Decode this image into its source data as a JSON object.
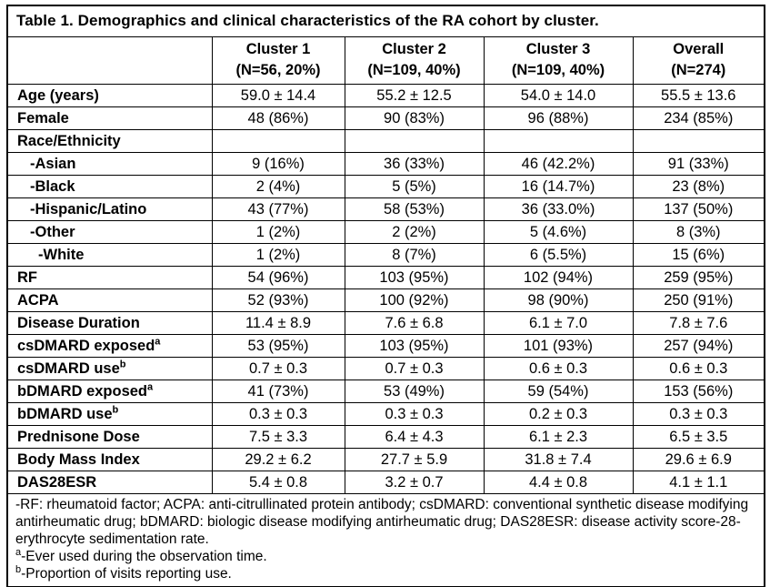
{
  "table": {
    "title": "Table 1. Demographics and clinical characteristics of the RA cohort by cluster.",
    "columns": [
      {
        "line1": "Cluster 1",
        "line2": "(N=56, 20%)"
      },
      {
        "line1": "Cluster 2",
        "line2": "(N=109, 40%)"
      },
      {
        "line1": "Cluster 3",
        "line2": "(N=109, 40%)"
      },
      {
        "line1": "Overall",
        "line2": "(N=274)"
      }
    ],
    "rows": [
      {
        "label": "Age (years)",
        "values": [
          "59.0 ± 14.4",
          "55.2 ± 12.5",
          "54.0 ± 14.0",
          "55.5 ± 13.6"
        ]
      },
      {
        "label": "Female",
        "values": [
          "48 (86%)",
          "90 (83%)",
          "96 (88%)",
          "234 (85%)"
        ]
      },
      {
        "label": "Race/Ethnicity",
        "values": [
          "",
          "",
          "",
          ""
        ]
      },
      {
        "label": "-Asian",
        "values": [
          "9 (16%)",
          "36 (33%)",
          "46 (42.2%)",
          "91 (33%)"
        ]
      },
      {
        "label": "-Black",
        "values": [
          "2 (4%)",
          "5 (5%)",
          "16 (14.7%)",
          "23 (8%)"
        ]
      },
      {
        "label": "-Hispanic/Latino",
        "values": [
          "43 (77%)",
          "58 (53%)",
          "36 (33.0%)",
          "137 (50%)"
        ]
      },
      {
        "label": "-Other",
        "values": [
          "1 (2%)",
          "2 (2%)",
          "5 (4.6%)",
          "8 (3%)"
        ]
      },
      {
        "label": "-White",
        "values": [
          "1 (2%)",
          "8 (7%)",
          "6 (5.5%)",
          "15 (6%)"
        ]
      },
      {
        "label": "RF",
        "values": [
          "54 (96%)",
          "103 (95%)",
          "102 (94%)",
          "259 (95%)"
        ]
      },
      {
        "label": "ACPA",
        "values": [
          "52 (93%)",
          "100 (92%)",
          "98 (90%)",
          "250 (91%)"
        ]
      },
      {
        "label": "Disease Duration",
        "values": [
          "11.4 ± 8.9",
          "7.6 ± 6.8",
          "6.1 ± 7.0",
          "7.8 ± 7.6"
        ]
      },
      {
        "label": "csDMARD exposed",
        "sup": "a",
        "values": [
          "53 (95%)",
          "103 (95%)",
          "101 (93%)",
          "257 (94%)"
        ]
      },
      {
        "label": "csDMARD use",
        "sup": "b",
        "values": [
          "0.7 ± 0.3",
          "0.7 ± 0.3",
          "0.6 ± 0.3",
          "0.6 ± 0.3"
        ]
      },
      {
        "label": "bDMARD exposed",
        "sup": "a",
        "values": [
          "41 (73%)",
          "53 (49%)",
          "59 (54%)",
          "153 (56%)"
        ]
      },
      {
        "label": "bDMARD use",
        "sup": "b",
        "values": [
          "0.3 ± 0.3",
          "0.3 ± 0.3",
          "0.2 ± 0.3",
          "0.3 ± 0.3"
        ]
      },
      {
        "label": "Prednisone Dose",
        "values": [
          "7.5 ± 3.3",
          "6.4 ± 4.3",
          "6.1 ± 2.3",
          "6.5 ± 3.5"
        ]
      },
      {
        "label": "Body Mass Index",
        "values": [
          "29.2 ± 6.2",
          "27.7 ± 5.9",
          "31.8 ± 7.4",
          "29.6 ± 6.9"
        ]
      },
      {
        "label": "DAS28ESR",
        "values": [
          "5.4 ± 0.8",
          "3.2 ± 0.7",
          "4.4 ± 0.8",
          "4.1 ± 1.1"
        ]
      }
    ],
    "footnotes": [
      {
        "sup": "",
        "text": "-RF: rheumatoid factor; ACPA: anti-citrullinated protein antibody; csDMARD: conventional synthetic disease modifying antirheumatic drug; bDMARD: biologic disease modifying antirheumatic drug; DAS28ESR: disease activity score-28-erythrocyte sedimentation rate."
      },
      {
        "sup": "a",
        "text": "-Ever used during the observation time."
      },
      {
        "sup": "b",
        "text": "-Proportion of visits reporting use."
      }
    ],
    "colors": {
      "text": "#000000",
      "border": "#000000",
      "background": "#ffffff"
    }
  }
}
